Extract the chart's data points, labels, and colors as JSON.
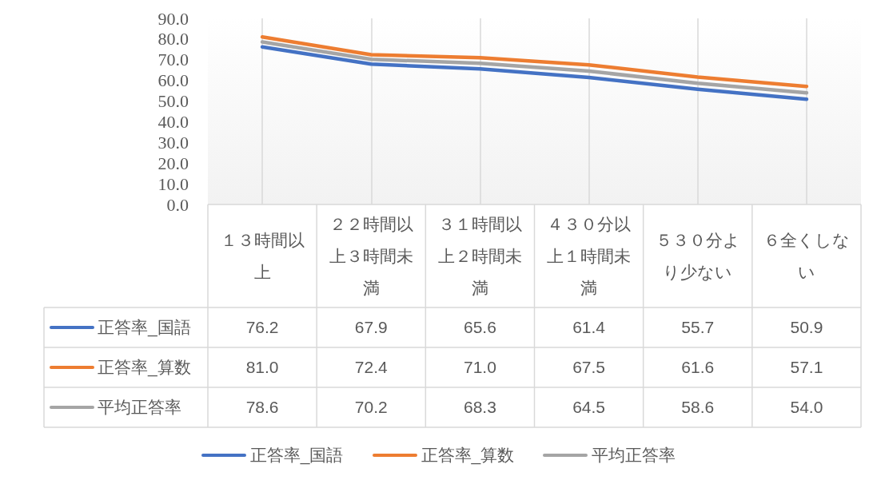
{
  "chart_data": {
    "type": "line",
    "categories": [
      "１３時間以上",
      "２２時間以上３時間未満",
      "３１時間以上２時間未満",
      "４３０分以上１時間未満",
      "５３０分より少ない",
      "６全くしない"
    ],
    "series": [
      {
        "name": "正答率_国語",
        "color": "#4472c4",
        "values": [
          76.2,
          67.9,
          65.6,
          61.4,
          55.7,
          50.9
        ],
        "value_labels": [
          "76.2",
          "67.9",
          "65.6",
          "61.4",
          "55.7",
          "50.9"
        ]
      },
      {
        "name": "正答率_算数",
        "color": "#ed7d31",
        "values": [
          81.0,
          72.4,
          71.0,
          67.5,
          61.6,
          57.1
        ],
        "value_labels": [
          "81.0",
          "72.4",
          "71.0",
          "67.5",
          "61.6",
          "57.1"
        ]
      },
      {
        "name": "平均正答率",
        "color": "#a5a5a5",
        "values": [
          78.6,
          70.2,
          68.3,
          64.5,
          58.6,
          54.0
        ],
        "value_labels": [
          "78.6",
          "70.2",
          "68.3",
          "64.5",
          "58.6",
          "54.0"
        ]
      }
    ],
    "ylim": [
      0,
      90
    ],
    "yticks": [
      {
        "value": 0,
        "label": "0.0"
      },
      {
        "value": 10,
        "label": "10.0"
      },
      {
        "value": 20,
        "label": "20.0"
      },
      {
        "value": 30,
        "label": "30.0"
      },
      {
        "value": 40,
        "label": "40.0"
      },
      {
        "value": 50,
        "label": "50.0"
      },
      {
        "value": 60,
        "label": "60.0"
      },
      {
        "value": 70,
        "label": "70.0"
      },
      {
        "value": 80,
        "label": "80.0"
      },
      {
        "value": 90,
        "label": "90.0"
      }
    ],
    "grid": "x",
    "legend": "bottom",
    "marker": "none",
    "line_style": "solid"
  }
}
